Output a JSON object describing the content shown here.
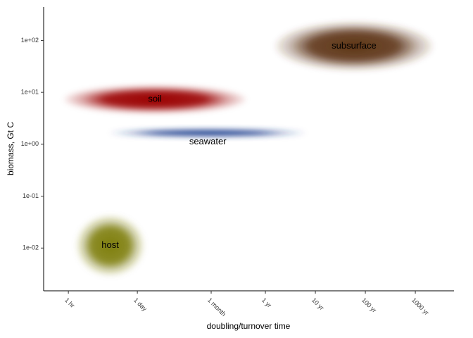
{
  "chart_data": {
    "type": "range-blob",
    "x_label": "doubling/turnover time",
    "y_label": "biomass, Gt C",
    "x_log": true,
    "y_log": true,
    "xlim": [
      0.32,
      52000000
    ],
    "ylim": [
      0.0015,
      440
    ],
    "xticks": [
      {
        "value": 1,
        "label": "1 hr"
      },
      {
        "value": 24,
        "label": "1 day"
      },
      {
        "value": 720,
        "label": "1 month"
      },
      {
        "value": 8760,
        "label": "1 yr"
      },
      {
        "value": 87600,
        "label": "10 yr"
      },
      {
        "value": 876000,
        "label": "100 yr"
      },
      {
        "value": 8760000,
        "label": "1000 yr"
      }
    ],
    "yticks": [
      {
        "value": 0.01,
        "label": "1e-02"
      },
      {
        "value": 0.1,
        "label": "1e-01"
      },
      {
        "value": 1,
        "label": "1e+00"
      },
      {
        "value": 10,
        "label": "1e+01"
      },
      {
        "value": 100,
        "label": "1e+02"
      }
    ],
    "series": [
      {
        "name": "subsurface",
        "color": "#5e3519",
        "x": [
          13500,
          20000000
        ],
        "y": [
          26,
          232
        ]
      },
      {
        "name": "soil",
        "color": "#9a0000",
        "x": [
          0.8,
          3650
        ],
        "y": [
          3.9,
          13.7
        ]
      },
      {
        "name": "seawater",
        "color": "#1f3f8f",
        "x": [
          6.6,
          57500
        ],
        "y": [
          1.37,
          2.0
        ]
      },
      {
        "name": "host",
        "color": "#7f7f12",
        "x": [
          1.43,
          33
        ],
        "y": [
          0.0029,
          0.043
        ]
      }
    ]
  }
}
